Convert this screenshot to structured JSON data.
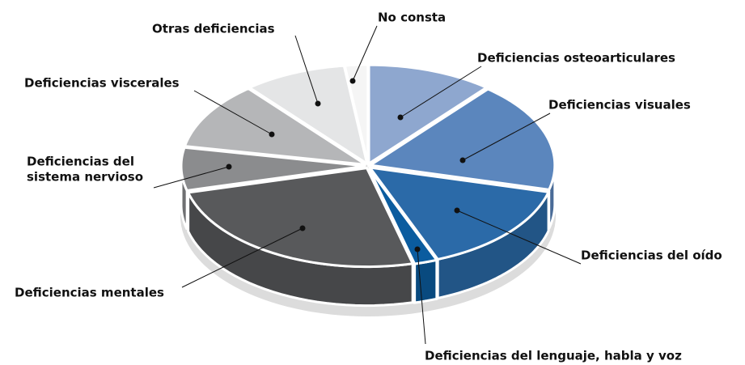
{
  "chart_data": {
    "type": "pie",
    "categories": [
      "Deficiencias osteoarticulares",
      "Deficiencias visuales",
      "Deficiencias del oído",
      "Deficiencias del lenguaje, habla y voz",
      "Deficiencias mentales",
      [
        "Deficiencias del",
        "sistema nervioso"
      ],
      "Deficiencias viscerales",
      "Otras deficiencias",
      "No consta"
    ],
    "values": [
      11,
      18,
      15,
      2,
      25,
      7,
      11,
      9,
      2
    ],
    "colors": [
      "#8ea7cf",
      "#5b86bd",
      "#2b6aa8",
      "#0b5c9f",
      "#58595b",
      "#8b8c8e",
      "#b5b6b8",
      "#e4e5e6",
      "#f5f5f5"
    ]
  }
}
